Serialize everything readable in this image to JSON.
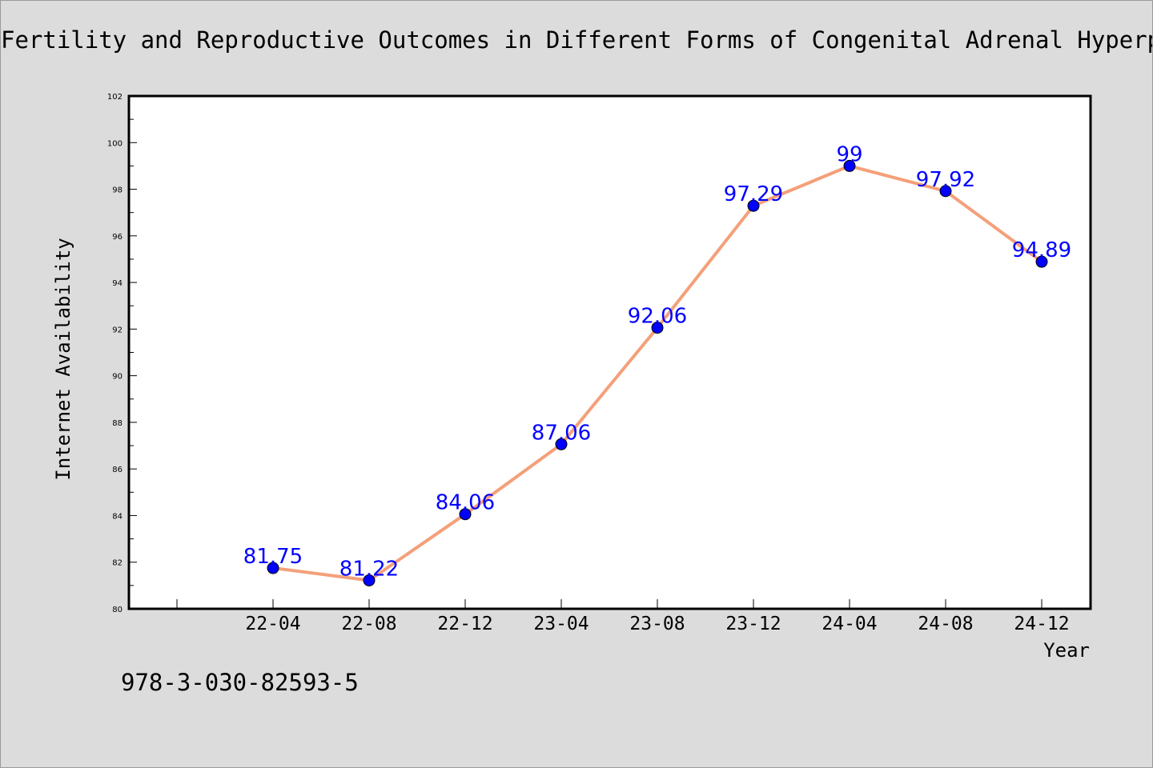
{
  "title": "Fertility and Reproductive Outcomes in Different Forms of Congenital Adrenal Hyperplasia",
  "footnote": "978-3-030-82593-5",
  "colors": {
    "background": "#dcdcdc",
    "plot_background": "#ffffff",
    "line": "#f4a07a",
    "marker": "#0000ff",
    "data_label": "#0000ff"
  },
  "chart_data": {
    "type": "line",
    "title": "Fertility and Reproductive Outcomes in Different Forms of Congenital Adrenal Hyperplasia",
    "xlabel": "Year",
    "ylabel": "Internet Availability",
    "categories": [
      "22-04",
      "22-08",
      "22-12",
      "23-04",
      "23-08",
      "23-12",
      "24-04",
      "24-08",
      "24-12"
    ],
    "series": [
      {
        "values": [
          81.75,
          81.22,
          84.06,
          87.06,
          92.06,
          97.29,
          99,
          97.92,
          94.89
        ]
      }
    ],
    "data_labels": [
      "81.75",
      "81.22",
      "84.06",
      "87.06",
      "92.06",
      "97.29",
      "99",
      "97.92",
      "94.89"
    ],
    "ylim": [
      80,
      102
    ],
    "yticks": [
      "80",
      "82",
      "84",
      "86",
      "88",
      "90",
      "92",
      "94",
      "96",
      "98",
      "100",
      "102"
    ],
    "grid": false,
    "legend": "none"
  }
}
